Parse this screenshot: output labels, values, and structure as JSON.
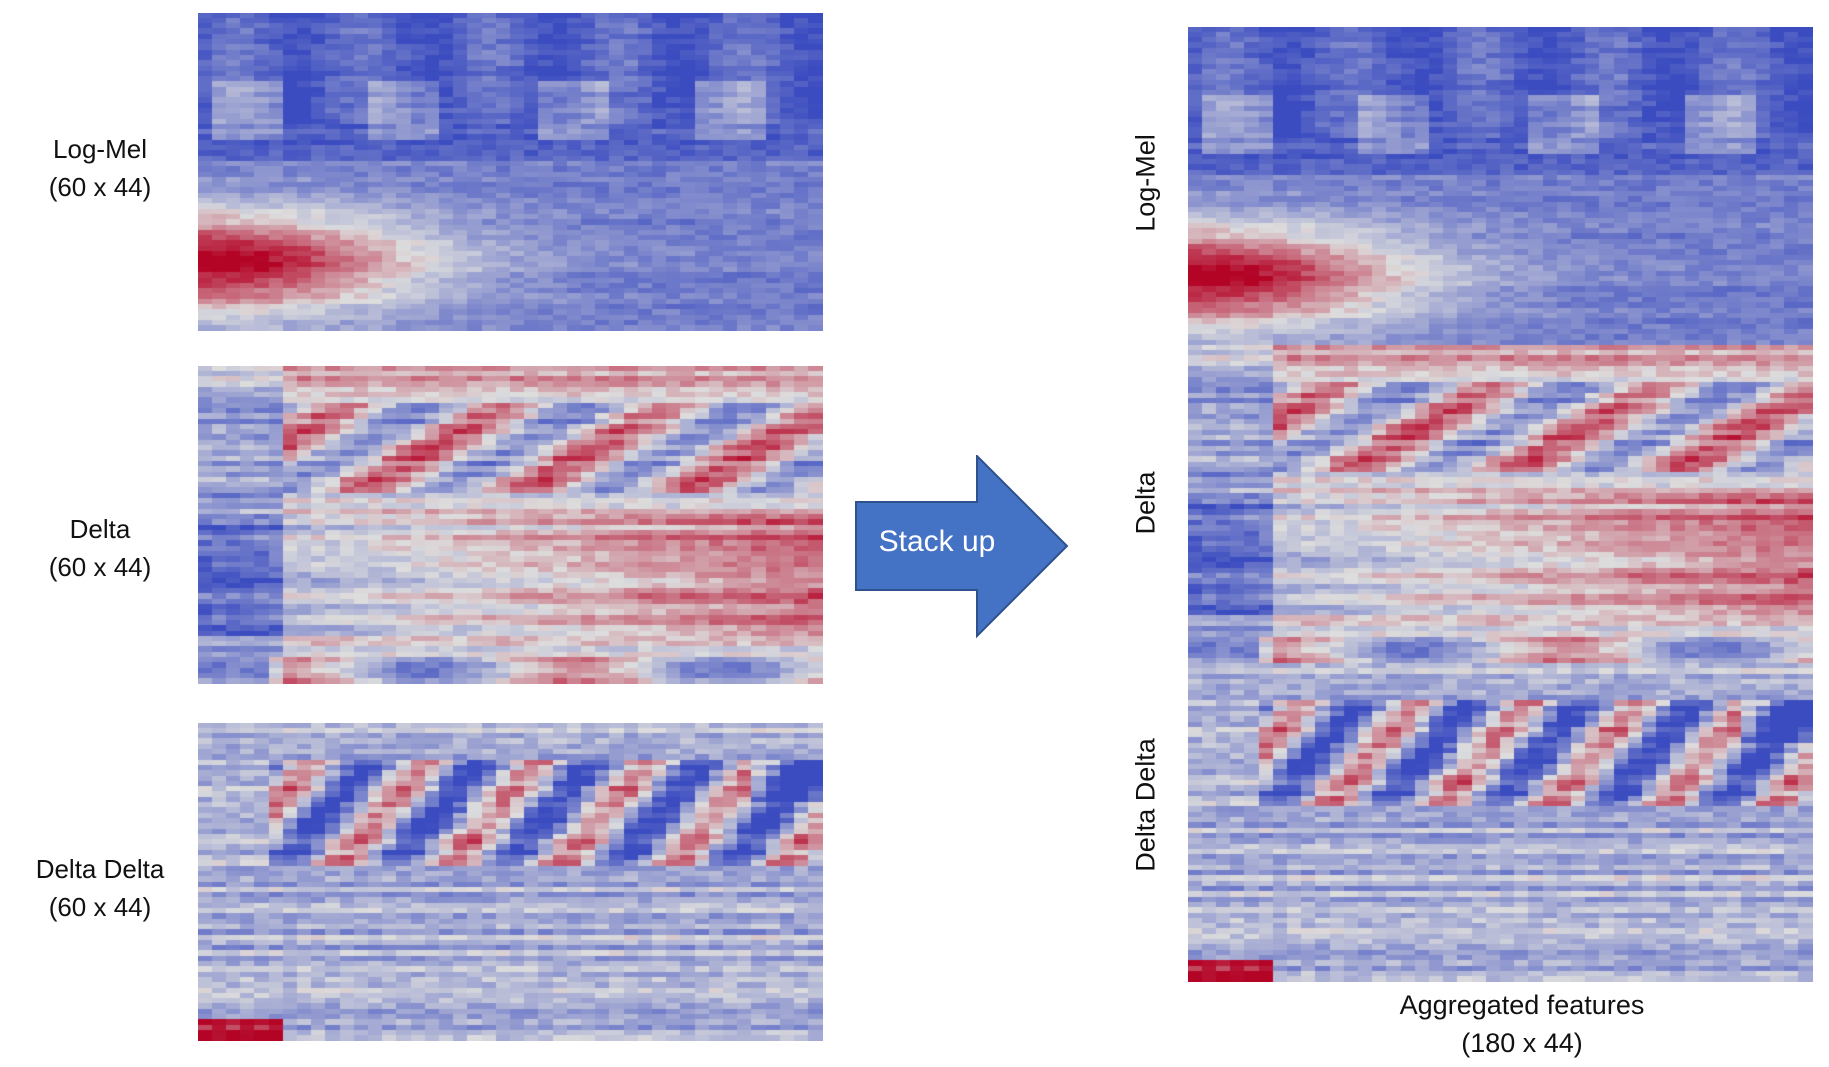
{
  "left_panels": [
    {
      "title": "Log-Mel",
      "dims": "(60 x 44)",
      "kind": "logmel"
    },
    {
      "title": "Delta",
      "dims": "(60 x 44)",
      "kind": "delta"
    },
    {
      "title": "Delta Delta",
      "dims": "(60 x 44)",
      "kind": "deltadelta"
    }
  ],
  "arrow": {
    "label": "Stack up",
    "color": "#4472C4"
  },
  "stack_labels": [
    "Log-Mel",
    "Delta",
    "Delta Delta"
  ],
  "aggregated": {
    "title": "Aggregated features",
    "dims": "(180 x 44)"
  },
  "colormap": {
    "low": "#3b4cc0",
    "mid": "#dddddd",
    "high": "#b40426"
  }
}
